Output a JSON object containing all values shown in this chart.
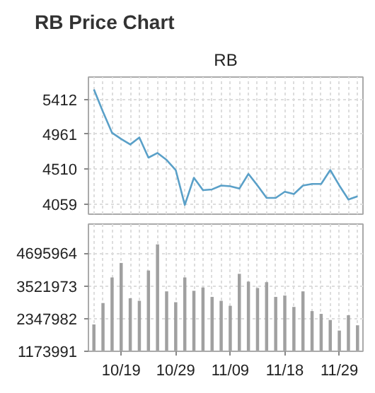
{
  "chart_data": [
    {
      "type": "line",
      "title": "RB Price Chart",
      "subtitle": "RB",
      "categories": [
        null,
        null,
        null,
        null,
        null,
        null,
        null,
        null,
        null,
        null,
        null,
        null,
        null,
        null,
        null,
        null,
        null,
        null,
        null,
        null,
        null,
        null,
        null,
        null,
        null,
        null,
        null,
        null,
        null,
        null
      ],
      "series": [
        {
          "color": "#5aa0c8",
          "values": [
            5540,
            5250,
            4980,
            4900,
            4830,
            4920,
            4660,
            4720,
            4630,
            4500,
            4050,
            4400,
            4240,
            4250,
            4300,
            4290,
            4260,
            4450,
            4300,
            4140,
            4140,
            4220,
            4190,
            4300,
            4320,
            4320,
            4500,
            4300,
            4120,
            4160
          ]
        }
      ],
      "ylim": [
        3930,
        5700
      ],
      "yticks": [
        4059,
        4510,
        4961,
        5412
      ],
      "grid": true,
      "marker": "none",
      "line_style": "solid",
      "tick_labels": "y"
    },
    {
      "type": "bar",
      "categories": [
        null,
        null,
        null,
        "10/19",
        null,
        null,
        null,
        null,
        null,
        "10/29",
        null,
        null,
        null,
        null,
        null,
        "11/09",
        null,
        null,
        null,
        null,
        null,
        "11/18",
        null,
        null,
        null,
        null,
        null,
        "11/29",
        null,
        null
      ],
      "series": [
        {
          "color": "#a0a0a0",
          "values": [
            2140000,
            2910000,
            3830000,
            4350000,
            3080000,
            2990000,
            4080000,
            5020000,
            3330000,
            2940000,
            3830000,
            3350000,
            3470000,
            3130000,
            2990000,
            2810000,
            3960000,
            3680000,
            3450000,
            3660000,
            3130000,
            3180000,
            2770000,
            3330000,
            2620000,
            2520000,
            2300000,
            1920000,
            2470000,
            2110000
          ]
        }
      ],
      "ylim": [
        1173991,
        5750000
      ],
      "yticks": [
        1173991,
        2347982,
        3521973,
        4695964
      ],
      "grid": true
    }
  ]
}
